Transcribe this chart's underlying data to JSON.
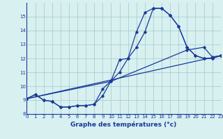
{
  "bg_color": "#d8f0f0",
  "line_color": "#1a3a9a",
  "grid_color": "#a0c8c8",
  "xlabel": "Graphe des températures (°c)",
  "xlabel_color": "#1a3a9a",
  "ylim": [
    8,
    16
  ],
  "xlim": [
    0,
    23
  ],
  "yticks": [
    8,
    9,
    10,
    11,
    12,
    13,
    14,
    15
  ],
  "xticks": [
    0,
    1,
    2,
    3,
    4,
    5,
    6,
    7,
    8,
    9,
    10,
    11,
    12,
    13,
    14,
    15,
    16,
    17,
    18,
    19,
    20,
    21,
    22,
    23
  ],
  "line1_x": [
    0,
    1,
    2,
    3,
    4,
    5,
    6,
    7,
    8,
    9,
    10,
    11,
    12,
    13,
    14,
    15,
    16,
    17,
    18,
    19,
    20,
    21,
    22,
    23
  ],
  "line1_y": [
    9.1,
    9.4,
    9.0,
    8.9,
    8.5,
    8.5,
    8.6,
    8.6,
    8.7,
    9.3,
    10.4,
    11.9,
    12.0,
    13.9,
    15.3,
    15.6,
    15.6,
    15.1,
    14.3,
    12.8,
    12.2,
    12.0,
    12.0,
    12.2
  ],
  "line2_x": [
    0,
    1,
    2,
    3,
    4,
    5,
    6,
    7,
    8,
    9,
    10,
    11,
    12,
    13,
    14,
    15,
    16,
    17,
    18,
    19,
    20,
    21,
    22,
    23
  ],
  "line2_y": [
    9.1,
    9.4,
    9.0,
    8.9,
    8.5,
    8.5,
    8.6,
    8.6,
    8.7,
    9.8,
    10.4,
    11.0,
    12.0,
    12.8,
    13.9,
    15.6,
    15.6,
    15.1,
    14.3,
    12.8,
    12.2,
    12.0,
    12.0,
    12.2
  ],
  "line3_x": [
    0,
    10,
    19,
    21,
    22,
    23
  ],
  "line3_y": [
    9.1,
    10.35,
    12.6,
    12.8,
    12.1,
    12.2
  ],
  "line4_x": [
    0,
    23
  ],
  "line4_y": [
    9.1,
    12.2
  ]
}
